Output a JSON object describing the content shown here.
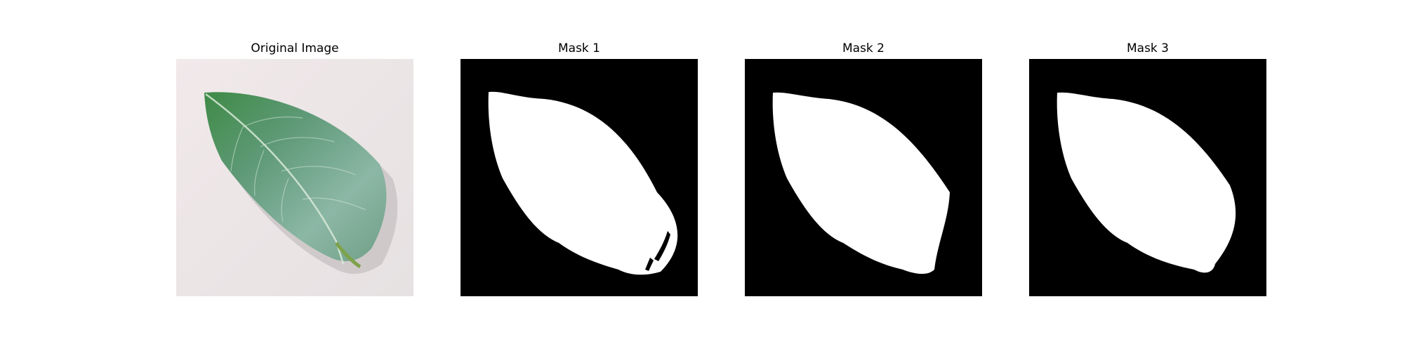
{
  "figure": {
    "panels": [
      {
        "title": "Original Image"
      },
      {
        "title": "Mask 1"
      },
      {
        "title": "Mask 2"
      },
      {
        "title": "Mask 3"
      }
    ]
  },
  "colors": {
    "mask_background": "#000000",
    "mask_foreground": "#ffffff",
    "leaf_dark": "#3e7f4a",
    "leaf_light": "#8fb8a6",
    "image_background": "#ece6e6"
  }
}
